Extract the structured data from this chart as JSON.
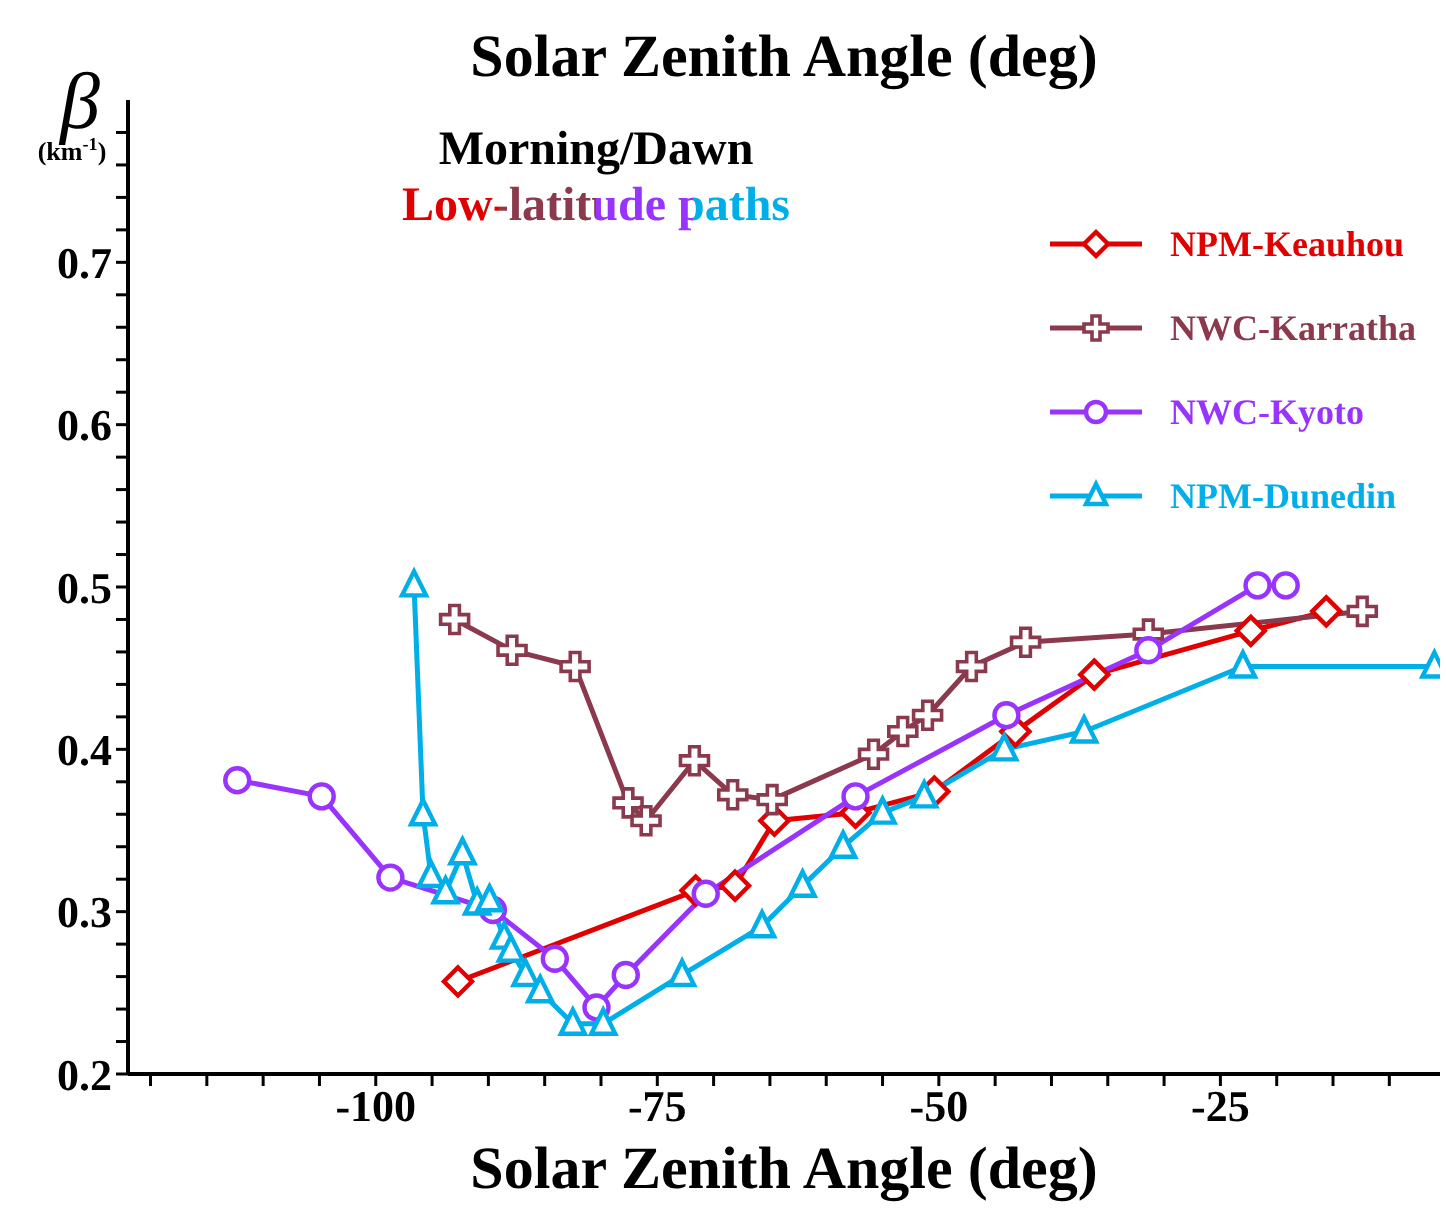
{
  "chart_data": {
    "type": "line",
    "x2label": "Solar Zenith Angle (deg)",
    "xlabel": "Solar Zenith Angle (deg)",
    "ylabel": "β (km$^{-1}$)",
    "annotations": [
      "Morning/Dawn",
      "Low-latitude paths"
    ],
    "xlim": [
      -122,
      -5.5
    ],
    "xticks": [
      {
        "value": -120,
        "label": null
      },
      {
        "value": -115,
        "label": null
      },
      {
        "value": -110,
        "label": null
      },
      {
        "value": -105,
        "label": null
      },
      -100,
      {
        "value": -95,
        "label": null
      },
      {
        "value": -90,
        "label": null
      },
      {
        "value": -85,
        "label": null
      },
      {
        "value": -80,
        "label": null
      },
      -75,
      {
        "value": -70,
        "label": null
      },
      {
        "value": -65,
        "label": null
      },
      {
        "value": -60,
        "label": null
      },
      {
        "value": -55,
        "label": null
      },
      -50,
      {
        "value": -45,
        "label": null
      },
      {
        "value": -40,
        "label": null
      },
      {
        "value": -35,
        "label": null
      },
      {
        "value": -30,
        "label": null
      },
      -25,
      {
        "value": -20,
        "label": null
      },
      {
        "value": -15,
        "label": null
      },
      {
        "value": -10,
        "label": null
      }
    ],
    "ylim": [
      0.2,
      0.8
    ],
    "yticks": [
      0.2,
      {
        "value": 0.22,
        "label": null
      },
      {
        "value": 0.24,
        "label": null
      },
      {
        "value": 0.26,
        "label": null
      },
      {
        "value": 0.28,
        "label": null
      },
      0.3,
      {
        "value": 0.32,
        "label": null
      },
      {
        "value": 0.34,
        "label": null
      },
      {
        "value": 0.36,
        "label": null
      },
      {
        "value": 0.38,
        "label": null
      },
      0.4,
      {
        "value": 0.42,
        "label": null
      },
      {
        "value": 0.44,
        "label": null
      },
      {
        "value": 0.46,
        "label": null
      },
      {
        "value": 0.48,
        "label": null
      },
      0.5,
      {
        "value": 0.52,
        "label": null
      },
      {
        "value": 0.54,
        "label": null
      },
      {
        "value": 0.56,
        "label": null
      },
      {
        "value": 0.58,
        "label": null
      },
      0.6,
      {
        "value": 0.62,
        "label": null
      },
      {
        "value": 0.64,
        "label": null
      },
      {
        "value": 0.66,
        "label": null
      },
      {
        "value": 0.68,
        "label": null
      },
      0.7,
      {
        "value": 0.72,
        "label": null
      },
      {
        "value": 0.74,
        "label": null
      },
      {
        "value": 0.76,
        "label": null
      },
      {
        "value": 0.78,
        "label": null
      }
    ],
    "legend": "top right",
    "line_style": "solid",
    "series": [
      {
        "name": "NPM-Keauhou",
        "color": "#e00000",
        "marker": "diamond",
        "x": [
          -92.7,
          -71.6,
          -68.1,
          -64.6,
          -57.4,
          -50.4,
          -43.2,
          -36.2,
          -22.3,
          -15.6
        ],
        "values": [
          0.257,
          0.313,
          0.316,
          0.356,
          0.361,
          0.374,
          0.411,
          0.446,
          0.473,
          0.485
        ]
      },
      {
        "name": "NWC-Karratha",
        "color": "#8b3a4e",
        "marker": "cross",
        "x": [
          -93.0,
          -87.9,
          -82.3,
          -77.6,
          -76.0,
          -71.7,
          -68.3,
          -64.8,
          -55.8,
          -53.2,
          -51.0,
          -47.1,
          -42.3,
          -31.4,
          -12.4
        ],
        "values": [
          0.48,
          0.461,
          0.451,
          0.367,
          0.356,
          0.393,
          0.372,
          0.369,
          0.397,
          0.411,
          0.421,
          0.451,
          0.466,
          0.471,
          0.485
        ]
      },
      {
        "name": "NWC-Kyoto",
        "color": "#9933ff",
        "marker": "circle",
        "x": [
          -112.3,
          -104.8,
          -98.7,
          -89.6,
          -84.1,
          -80.4,
          -77.8,
          -70.7,
          -57.4,
          -44.0,
          -31.4,
          -21.7,
          -19.2
        ],
        "values": [
          0.381,
          0.371,
          0.321,
          0.301,
          0.271,
          0.241,
          0.261,
          0.311,
          0.371,
          0.421,
          0.461,
          0.501,
          0.501
        ]
      },
      {
        "name": "NPM-Dunedin",
        "color": "#00aee8",
        "marker": "triangle",
        "x": [
          -96.6,
          -95.8,
          -95.1,
          -93.8,
          -92.3,
          -91.0,
          -89.9,
          -88.6,
          -88.0,
          -86.7,
          -85.4,
          -82.5,
          -79.8,
          -72.8,
          -65.7,
          -62.1,
          -58.5,
          -55.0,
          -51.3,
          -44.2,
          -37.1,
          -23.0,
          -6.0
        ],
        "values": [
          0.501,
          0.36,
          0.322,
          0.312,
          0.336,
          0.305,
          0.307,
          0.284,
          0.276,
          0.261,
          0.251,
          0.231,
          0.231,
          0.261,
          0.291,
          0.316,
          0.34,
          0.361,
          0.371,
          0.4,
          0.411,
          0.451,
          0.451
        ]
      }
    ]
  }
}
